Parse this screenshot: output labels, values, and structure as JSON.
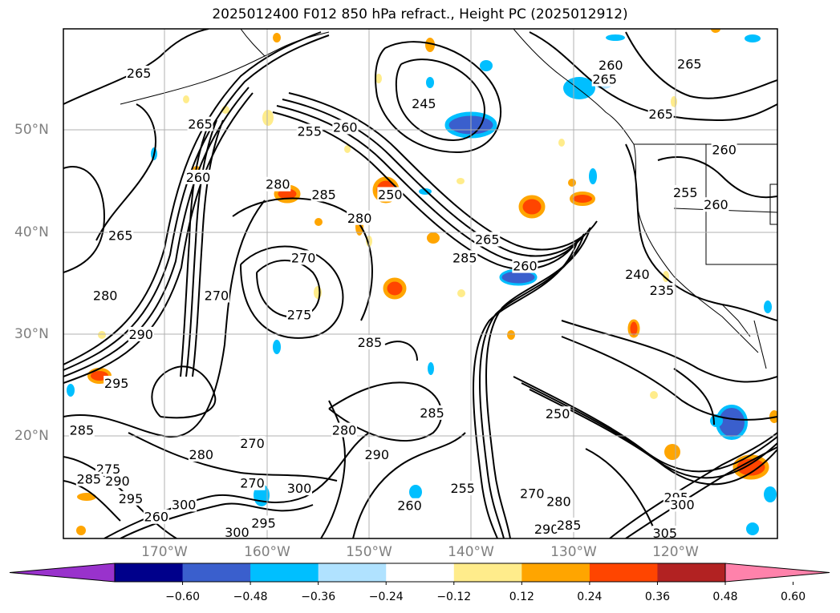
{
  "title": "2025012400 F012 850 hPa refract., Height PC (2025012912)",
  "lat_labels": [
    "50°N",
    "40°N",
    "30°N",
    "20°N"
  ],
  "lon_labels": [
    "170°W",
    "160°W",
    "150°W",
    "140°W",
    "130°W",
    "120°W"
  ],
  "colorbar": {
    "ticks": [
      "−0.60",
      "−0.48",
      "−0.36",
      "−0.24",
      "−0.12",
      "0.12",
      "0.24",
      "0.36",
      "0.48",
      "0.60"
    ],
    "colors": [
      "#9932cc",
      "#00008b",
      "#3a5fcd",
      "#00bfff",
      "#b0e2ff",
      "#ffffff",
      "#ffec8b",
      "#ffa500",
      "#ff4500",
      "#b22222",
      "#ff82ab"
    ]
  },
  "contour_labels": [
    {
      "text": "265",
      "lon": -172.5,
      "lat": 55.5
    },
    {
      "text": "265",
      "lon": -166.5,
      "lat": 50.5
    },
    {
      "text": "260",
      "lon": -166.7,
      "lat": 45.3
    },
    {
      "text": "265",
      "lon": -174.3,
      "lat": 39.6
    },
    {
      "text": "280",
      "lon": -158.9,
      "lat": 44.6
    },
    {
      "text": "285",
      "lon": -154.4,
      "lat": 43.6
    },
    {
      "text": "255",
      "lon": -155.8,
      "lat": 49.8
    },
    {
      "text": "260",
      "lon": -152.3,
      "lat": 50.2
    },
    {
      "text": "245",
      "lon": -144.6,
      "lat": 52.5
    },
    {
      "text": "250",
      "lon": -147.9,
      "lat": 43.6
    },
    {
      "text": "280",
      "lon": -150.9,
      "lat": 41.3
    },
    {
      "text": "265",
      "lon": -138.4,
      "lat": 39.2
    },
    {
      "text": "285",
      "lon": -140.6,
      "lat": 37.4
    },
    {
      "text": "260",
      "lon": -134.7,
      "lat": 36.6
    },
    {
      "text": "270",
      "lon": -156.4,
      "lat": 37.4
    },
    {
      "text": "275",
      "lon": -156.8,
      "lat": 31.8
    },
    {
      "text": "270",
      "lon": -164.9,
      "lat": 33.7
    },
    {
      "text": "280",
      "lon": -175.8,
      "lat": 33.7
    },
    {
      "text": "290",
      "lon": -172.3,
      "lat": 29.9
    },
    {
      "text": "295",
      "lon": -174.7,
      "lat": 25.1
    },
    {
      "text": "285",
      "lon": -149.9,
      "lat": 29.1
    },
    {
      "text": "285",
      "lon": -143.8,
      "lat": 22.2
    },
    {
      "text": "280",
      "lon": -152.4,
      "lat": 20.5
    },
    {
      "text": "270",
      "lon": -161.4,
      "lat": 19.2
    },
    {
      "text": "280",
      "lon": -166.4,
      "lat": 18.1
    },
    {
      "text": "290",
      "lon": -149.2,
      "lat": 18.1
    },
    {
      "text": "300",
      "lon": -156.8,
      "lat": 14.8
    },
    {
      "text": "270",
      "lon": -161.4,
      "lat": 15.3
    },
    {
      "text": "255",
      "lon": -140.8,
      "lat": 14.8
    },
    {
      "text": "260",
      "lon": -146.0,
      "lat": 13.1
    },
    {
      "text": "250",
      "lon": -131.5,
      "lat": 22.1
    },
    {
      "text": "270",
      "lon": -134.0,
      "lat": 14.3
    },
    {
      "text": "280",
      "lon": -131.4,
      "lat": 13.5
    },
    {
      "text": "290",
      "lon": -132.6,
      "lat": 10.8
    },
    {
      "text": "285",
      "lon": -130.4,
      "lat": 11.2
    },
    {
      "text": "260",
      "lon": -126.3,
      "lat": 56.3
    },
    {
      "text": "265",
      "lon": -126.9,
      "lat": 54.9
    },
    {
      "text": "265",
      "lon": -121.4,
      "lat": 51.5
    },
    {
      "text": "265",
      "lon": -118.6,
      "lat": 56.4
    },
    {
      "text": "260",
      "lon": -115.2,
      "lat": 48.0
    },
    {
      "text": "255",
      "lon": -119.0,
      "lat": 43.8
    },
    {
      "text": "260",
      "lon": -116.0,
      "lat": 42.6
    },
    {
      "text": "240",
      "lon": -123.7,
      "lat": 35.8
    },
    {
      "text": "235",
      "lon": -121.3,
      "lat": 34.2
    },
    {
      "text": "285",
      "lon": -178.1,
      "lat": 20.5
    },
    {
      "text": "275",
      "lon": -175.5,
      "lat": 16.7
    },
    {
      "text": "285",
      "lon": -177.4,
      "lat": 15.7
    },
    {
      "text": "290",
      "lon": -174.6,
      "lat": 15.5
    },
    {
      "text": "295",
      "lon": -173.3,
      "lat": 13.8
    },
    {
      "text": "260",
      "lon": -170.8,
      "lat": 12.0
    },
    {
      "text": "300",
      "lon": -168.1,
      "lat": 13.2
    },
    {
      "text": "300",
      "lon": -162.9,
      "lat": 10.5
    },
    {
      "text": "295",
      "lon": -160.3,
      "lat": 11.4
    },
    {
      "text": "295",
      "lon": -119.9,
      "lat": 13.9
    },
    {
      "text": "300",
      "lon": -119.3,
      "lat": 13.2
    },
    {
      "text": "305",
      "lon": -121.0,
      "lat": 10.4
    }
  ]
}
